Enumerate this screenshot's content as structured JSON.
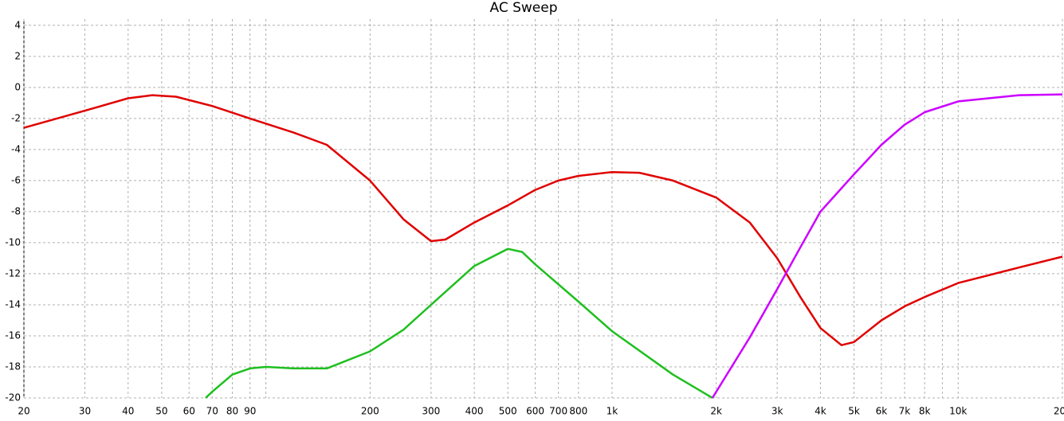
{
  "chart_data": {
    "type": "line",
    "title": "AC Sweep",
    "xscale": "log",
    "grid": true,
    "xlim": [
      20,
      20000
    ],
    "ylim": [
      -20,
      4.4
    ],
    "yticks": [
      4,
      2,
      0,
      -2,
      -4,
      -6,
      -8,
      -10,
      -12,
      -14,
      -16,
      -18,
      -20
    ],
    "xticks": [
      20,
      30,
      40,
      50,
      60,
      70,
      80,
      90,
      {
        "value": 100,
        "label": null
      },
      200,
      300,
      400,
      500,
      600,
      700,
      800,
      {
        "value": 1000,
        "label": "1k"
      },
      {
        "value": 2000,
        "label": "2k"
      },
      {
        "value": 3000,
        "label": "3k"
      },
      {
        "value": 4000,
        "label": "4k"
      },
      {
        "value": 5000,
        "label": "5k"
      },
      {
        "value": 6000,
        "label": "6k"
      },
      {
        "value": 7000,
        "label": "7k"
      },
      {
        "value": 8000,
        "label": "8k"
      },
      {
        "value": 9000,
        "label": null
      },
      {
        "value": 10000,
        "label": "10k"
      },
      {
        "value": 20000,
        "label": "20k"
      }
    ],
    "series": [
      {
        "color": "#e00000",
        "x": [
          20,
          30,
          40,
          47,
          55,
          70,
          90,
          120,
          150,
          200,
          250,
          300,
          330,
          400,
          500,
          600,
          700,
          800,
          1000,
          1200,
          1500,
          2000,
          2500,
          3000,
          3500,
          4000,
          4600,
          5000,
          6000,
          7000,
          8000,
          10000,
          15000,
          20000
        ],
        "values": [
          -2.6,
          -1.5,
          -0.7,
          -0.5,
          -0.6,
          -1.2,
          -2.0,
          -2.9,
          -3.7,
          -6.0,
          -8.5,
          -9.9,
          -9.8,
          -8.7,
          -7.6,
          -6.6,
          -6.0,
          -5.7,
          -5.45,
          -5.5,
          -6.0,
          -7.1,
          -8.7,
          -11,
          -13.5,
          -15.5,
          -16.6,
          -16.4,
          -15.0,
          -14.1,
          -13.5,
          -12.6,
          -11.6,
          -10.9
        ]
      },
      {
        "color": "#1fbf1f",
        "x": [
          67,
          70,
          80,
          90,
          100,
          120,
          150,
          200,
          250,
          300,
          400,
          500,
          550,
          600,
          800,
          1000,
          1500,
          1950
        ],
        "values": [
          -20,
          -19.6,
          -18.5,
          -18.1,
          -18.0,
          -18.1,
          -18.1,
          -17,
          -15.6,
          -14,
          -11.5,
          -10.4,
          -10.6,
          -11.4,
          -13.8,
          -15.7,
          -18.5,
          -20
        ]
      },
      {
        "color": "#cc00ff",
        "x": [
          1950,
          2500,
          3000,
          3500,
          4000,
          5000,
          6000,
          7000,
          8000,
          10000,
          15000,
          20000
        ],
        "values": [
          -20,
          -16.1,
          -13,
          -10.3,
          -8.0,
          -5.6,
          -3.7,
          -2.4,
          -1.6,
          -0.9,
          -0.5,
          -0.45
        ]
      }
    ]
  }
}
